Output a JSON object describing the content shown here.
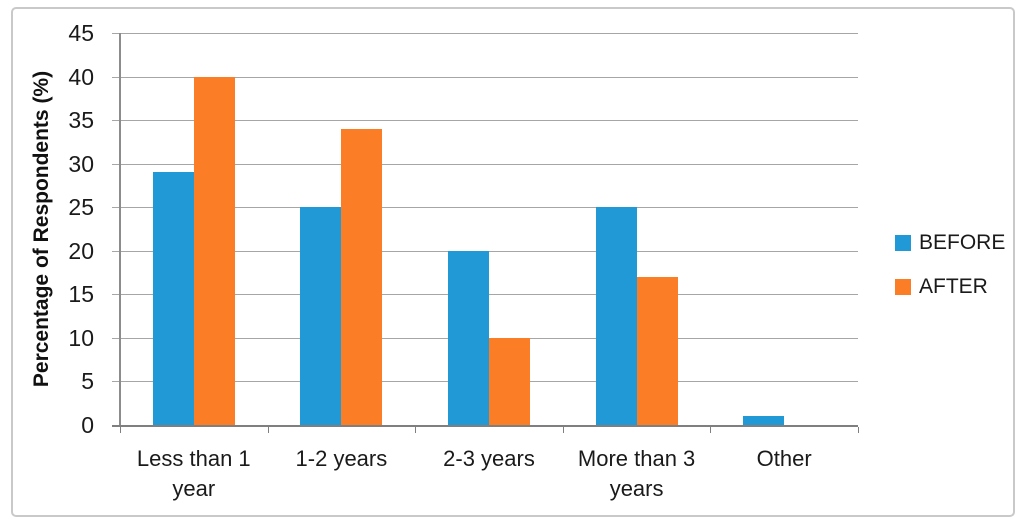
{
  "chart_data": {
    "type": "bar",
    "categories": [
      "Less than 1 year",
      "1-2 years",
      "2-3 years",
      "More than 3 years",
      "Other"
    ],
    "series": [
      {
        "name": "BEFORE",
        "color": "#2199d6",
        "values": [
          29,
          25,
          20,
          25,
          1
        ]
      },
      {
        "name": "AFTER",
        "color": "#fb7e27",
        "values": [
          40,
          34,
          10,
          17,
          0
        ]
      }
    ],
    "title": "",
    "xlabel": "",
    "ylabel": "Percentage of Respondents (%)",
    "ylim": [
      0,
      45
    ],
    "ytick_step": 5,
    "yticks": [
      0,
      5,
      10,
      15,
      20,
      25,
      30,
      35,
      40,
      45
    ],
    "grid": true,
    "legend_position": "right"
  },
  "legend": {
    "items": [
      {
        "label": "BEFORE",
        "color": "#2199d6"
      },
      {
        "label": "AFTER",
        "color": "#fb7e27"
      }
    ]
  },
  "colors": {
    "gridline": "#a6a6a6",
    "axis_line": "#7f7f7f",
    "chart_border": "#c9c9c9",
    "background": "#ffffff",
    "text": "#1a1a1a"
  }
}
